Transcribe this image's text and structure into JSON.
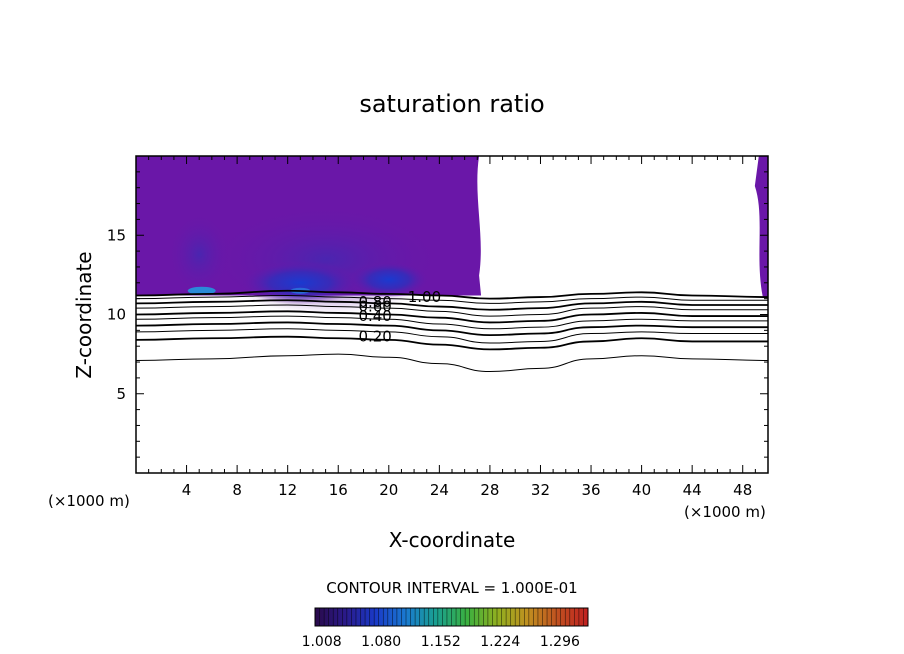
{
  "chart_data": {
    "type": "contour",
    "title": "saturation ratio",
    "xlabel": "X-coordinate",
    "ylabel": "Z-coordinate",
    "x_unit_left": "(×1000 m)",
    "x_unit_right": "(×1000 m)",
    "xlim": [
      0,
      50
    ],
    "ylim": [
      0,
      20
    ],
    "x_ticks": [
      4,
      8,
      12,
      16,
      20,
      24,
      28,
      32,
      36,
      40,
      44,
      48
    ],
    "y_ticks": [
      5,
      10,
      15
    ],
    "contour_interval_label": "CONTOUR INTERVAL = 1.000E-01",
    "contour_labels": [
      {
        "text": "1.00",
        "x": 21.5,
        "z": 11.1
      },
      {
        "text": "0.80",
        "x": 17.6,
        "z": 10.8
      },
      {
        "text": "0.60",
        "x": 17.6,
        "z": 10.5
      },
      {
        "text": "0.40",
        "x": 17.6,
        "z": 9.9
      },
      {
        "text": "0.20",
        "x": 17.6,
        "z": 8.6
      }
    ],
    "contour_lines": [
      {
        "level": 1.0,
        "points": [
          [
            0,
            11.2
          ],
          [
            6,
            11.3
          ],
          [
            12,
            11.5
          ],
          [
            16,
            11.4
          ],
          [
            20,
            11.3
          ],
          [
            24,
            11.2
          ],
          [
            28,
            11.0
          ],
          [
            32,
            11.1
          ],
          [
            36,
            11.3
          ],
          [
            40,
            11.4
          ],
          [
            44,
            11.2
          ],
          [
            50,
            11.1
          ]
        ]
      },
      {
        "level": 0.9,
        "points": [
          [
            0,
            11.0
          ],
          [
            6,
            11.1
          ],
          [
            12,
            11.2
          ],
          [
            16,
            11.1
          ],
          [
            20,
            11.0
          ],
          [
            24,
            10.9
          ],
          [
            28,
            10.7
          ],
          [
            32,
            10.8
          ],
          [
            36,
            11.0
          ],
          [
            40,
            11.1
          ],
          [
            44,
            10.9
          ],
          [
            50,
            10.9
          ]
        ]
      },
      {
        "level": 0.8,
        "points": [
          [
            0,
            10.7
          ],
          [
            6,
            10.8
          ],
          [
            12,
            10.9
          ],
          [
            16,
            10.8
          ],
          [
            20,
            10.7
          ],
          [
            24,
            10.5
          ],
          [
            28,
            10.3
          ],
          [
            32,
            10.4
          ],
          [
            36,
            10.7
          ],
          [
            40,
            10.8
          ],
          [
            44,
            10.6
          ],
          [
            50,
            10.6
          ]
        ]
      },
      {
        "level": 0.7,
        "points": [
          [
            0,
            10.4
          ],
          [
            6,
            10.5
          ],
          [
            12,
            10.6
          ],
          [
            16,
            10.5
          ],
          [
            20,
            10.4
          ],
          [
            24,
            10.2
          ],
          [
            28,
            9.9
          ],
          [
            32,
            10.0
          ],
          [
            36,
            10.4
          ],
          [
            40,
            10.5
          ],
          [
            44,
            10.3
          ],
          [
            50,
            10.3
          ]
        ]
      },
      {
        "level": 0.6,
        "points": [
          [
            0,
            10.0
          ],
          [
            6,
            10.1
          ],
          [
            12,
            10.2
          ],
          [
            16,
            10.1
          ],
          [
            20,
            10.0
          ],
          [
            24,
            9.8
          ],
          [
            28,
            9.5
          ],
          [
            32,
            9.6
          ],
          [
            36,
            10.0
          ],
          [
            40,
            10.1
          ],
          [
            44,
            9.9
          ],
          [
            50,
            9.9
          ]
        ]
      },
      {
        "level": 0.5,
        "points": [
          [
            0,
            9.7
          ],
          [
            6,
            9.8
          ],
          [
            12,
            9.9
          ],
          [
            16,
            9.8
          ],
          [
            20,
            9.7
          ],
          [
            24,
            9.4
          ],
          [
            28,
            9.1
          ],
          [
            32,
            9.2
          ],
          [
            36,
            9.6
          ],
          [
            40,
            9.7
          ],
          [
            44,
            9.6
          ],
          [
            50,
            9.6
          ]
        ]
      },
      {
        "level": 0.4,
        "points": [
          [
            0,
            9.3
          ],
          [
            6,
            9.4
          ],
          [
            12,
            9.5
          ],
          [
            16,
            9.4
          ],
          [
            20,
            9.3
          ],
          [
            24,
            9.0
          ],
          [
            28,
            8.7
          ],
          [
            32,
            8.8
          ],
          [
            36,
            9.2
          ],
          [
            40,
            9.3
          ],
          [
            44,
            9.2
          ],
          [
            50,
            9.2
          ]
        ]
      },
      {
        "level": 0.3,
        "points": [
          [
            0,
            8.9
          ],
          [
            6,
            9.0
          ],
          [
            12,
            9.1
          ],
          [
            16,
            9.0
          ],
          [
            20,
            8.9
          ],
          [
            24,
            8.6
          ],
          [
            28,
            8.2
          ],
          [
            32,
            8.3
          ],
          [
            36,
            8.8
          ],
          [
            40,
            8.9
          ],
          [
            44,
            8.8
          ],
          [
            50,
            8.8
          ]
        ]
      },
      {
        "level": 0.2,
        "points": [
          [
            0,
            8.4
          ],
          [
            6,
            8.5
          ],
          [
            12,
            8.6
          ],
          [
            16,
            8.5
          ],
          [
            20,
            8.4
          ],
          [
            24,
            8.1
          ],
          [
            28,
            7.8
          ],
          [
            32,
            7.9
          ],
          [
            36,
            8.3
          ],
          [
            40,
            8.5
          ],
          [
            44,
            8.3
          ],
          [
            50,
            8.3
          ]
        ]
      },
      {
        "level": 0.1,
        "points": [
          [
            0,
            7.1
          ],
          [
            6,
            7.2
          ],
          [
            12,
            7.4
          ],
          [
            16,
            7.5
          ],
          [
            20,
            7.3
          ],
          [
            24,
            6.9
          ],
          [
            28,
            6.4
          ],
          [
            32,
            6.6
          ],
          [
            36,
            7.2
          ],
          [
            40,
            7.4
          ],
          [
            44,
            7.2
          ],
          [
            50,
            7.1
          ]
        ]
      }
    ],
    "filled_region_left": {
      "x_range": [
        0,
        27.3
      ],
      "z_range": [
        11.2,
        20
      ],
      "color": "#6a17a8"
    },
    "filled_region_right": {
      "x_range": [
        48.8,
        50
      ],
      "z_range": [
        11.1,
        20
      ],
      "color": "#6a17a8"
    },
    "colorbar": {
      "tick_labels": [
        "1.008",
        "1.080",
        "1.152",
        "1.224",
        "1.296"
      ],
      "min": 1.0,
      "max": 1.33,
      "colors": [
        "#2a0a4a",
        "#2a1a8a",
        "#1a3ac8",
        "#1a7ad0",
        "#1aa090",
        "#3ab040",
        "#90b020",
        "#c09020",
        "#c05020",
        "#c02020"
      ]
    }
  }
}
